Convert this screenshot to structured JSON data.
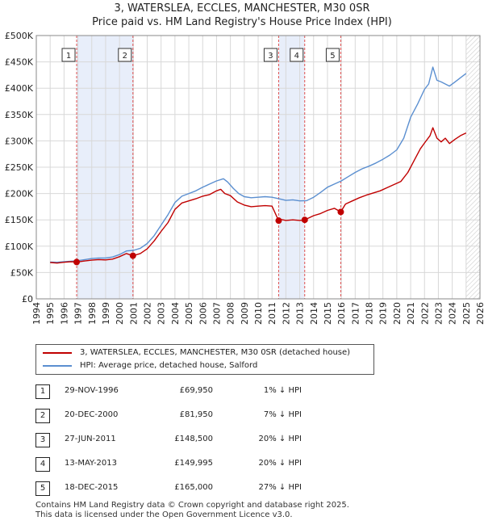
{
  "title_line1": "3, WATERSLEA, ECCLES, MANCHESTER, M30 0SR",
  "title_line2": "Price paid vs. HM Land Registry's House Price Index (HPI)",
  "colors": {
    "property": "#c00000",
    "hpi": "#5b8fd0",
    "shade": "#e8eefa",
    "sale_line": "#e05050"
  },
  "chart_data": {
    "type": "line",
    "xlim": [
      1994,
      2026
    ],
    "ylim": [
      0,
      500000
    ],
    "grid": true,
    "x_ticks": [
      "1994",
      "1995",
      "1996",
      "1997",
      "1998",
      "1999",
      "2000",
      "2001",
      "2002",
      "2003",
      "2004",
      "2005",
      "2006",
      "2007",
      "2008",
      "2009",
      "2010",
      "2011",
      "2012",
      "2013",
      "2014",
      "2015",
      "2016",
      "2017",
      "2018",
      "2019",
      "2020",
      "2021",
      "2022",
      "2023",
      "2024",
      "2025",
      "2026"
    ],
    "y_ticks": [
      {
        "value": 0,
        "label": "£0"
      },
      {
        "value": 50000,
        "label": "£50K"
      },
      {
        "value": 100000,
        "label": "£100K"
      },
      {
        "value": 150000,
        "label": "£150K"
      },
      {
        "value": 200000,
        "label": "£200K"
      },
      {
        "value": 250000,
        "label": "£250K"
      },
      {
        "value": 300000,
        "label": "£300K"
      },
      {
        "value": 350000,
        "label": "£350K"
      },
      {
        "value": 400000,
        "label": "£400K"
      },
      {
        "value": 450000,
        "label": "£450K"
      },
      {
        "value": 500000,
        "label": "£500K"
      }
    ],
    "series": [
      {
        "name": "3, WATERSLEA, ECCLES, MANCHESTER, M30 0SR (detached house)",
        "x": [
          1995.0,
          1995.5,
          1996.0,
          1996.5,
          1996.91,
          1997.5,
          1998.0,
          1998.5,
          1999.0,
          1999.5,
          2000.0,
          2000.5,
          2000.97,
          2001.5,
          2002.0,
          2002.5,
          2003.0,
          2003.5,
          2004.0,
          2004.5,
          2005.0,
          2005.5,
          2006.0,
          2006.5,
          2007.0,
          2007.3,
          2007.6,
          2008.0,
          2008.5,
          2009.0,
          2009.5,
          2010.0,
          2010.5,
          2011.0,
          2011.48,
          2011.6,
          2012.0,
          2012.5,
          2013.0,
          2013.36,
          2013.6,
          2014.0,
          2014.5,
          2015.0,
          2015.5,
          2015.96,
          2016.3,
          2016.8,
          2017.3,
          2017.8,
          2018.3,
          2018.8,
          2019.3,
          2019.8,
          2020.3,
          2020.8,
          2021.3,
          2021.7,
          2022.0,
          2022.4,
          2022.6,
          2022.9,
          2023.2,
          2023.5,
          2023.8,
          2024.2,
          2024.6,
          2025.0
        ],
        "values": [
          69000,
          68000,
          69500,
          70500,
          69950,
          72000,
          73500,
          74500,
          74000,
          75500,
          80000,
          86000,
          81950,
          86000,
          95000,
          110000,
          128000,
          145000,
          170000,
          182000,
          186000,
          190000,
          195000,
          198000,
          205000,
          208000,
          200000,
          196000,
          184000,
          178000,
          175000,
          176000,
          177000,
          176000,
          148500,
          151000,
          149000,
          150000,
          149000,
          149995,
          153000,
          158000,
          162000,
          168000,
          172000,
          165000,
          180000,
          186000,
          192000,
          197000,
          201000,
          205000,
          211000,
          217000,
          223000,
          240000,
          265000,
          285000,
          296000,
          310000,
          325000,
          305000,
          298000,
          305000,
          295000,
          303000,
          310000,
          315000
        ]
      },
      {
        "name": "HPI: Average price, detached house, Salford",
        "x": [
          1995.0,
          1995.5,
          1996.0,
          1996.5,
          1997.0,
          1997.5,
          1998.0,
          1998.5,
          1999.0,
          1999.5,
          2000.0,
          2000.5,
          2001.0,
          2001.5,
          2002.0,
          2002.5,
          2003.0,
          2003.5,
          2004.0,
          2004.5,
          2005.0,
          2005.5,
          2006.0,
          2006.5,
          2007.0,
          2007.5,
          2007.8,
          2008.2,
          2008.6,
          2009.0,
          2009.5,
          2010.0,
          2010.5,
          2011.0,
          2011.5,
          2012.0,
          2012.5,
          2013.0,
          2013.5,
          2014.0,
          2014.5,
          2015.0,
          2015.5,
          2016.0,
          2016.5,
          2017.0,
          2017.5,
          2018.0,
          2018.5,
          2019.0,
          2019.5,
          2020.0,
          2020.5,
          2021.0,
          2021.5,
          2022.0,
          2022.3,
          2022.6,
          2022.9,
          2023.2,
          2023.5,
          2023.8,
          2024.2,
          2024.6,
          2025.0
        ],
        "values": [
          70000,
          69500,
          70500,
          71500,
          72500,
          74500,
          76500,
          77500,
          77500,
          79500,
          84000,
          91000,
          92000,
          96000,
          105000,
          120000,
          140000,
          160000,
          183000,
          195000,
          200000,
          205000,
          212000,
          218000,
          224000,
          228000,
          222000,
          210000,
          200000,
          194000,
          192000,
          193000,
          194000,
          193000,
          190000,
          187000,
          188000,
          186000,
          186500,
          193000,
          202000,
          212000,
          218000,
          224000,
          232000,
          240000,
          247000,
          252000,
          258000,
          265000,
          273000,
          283000,
          305000,
          345000,
          370000,
          398000,
          408000,
          440000,
          415000,
          412000,
          408000,
          404000,
          412000,
          420000,
          428000
        ]
      }
    ],
    "sales": [
      {
        "num": "1",
        "date": "29-NOV-1996",
        "x": 1996.91,
        "price": 69950,
        "price_label": "£69,950",
        "hpi": "1% ↓ HPI"
      },
      {
        "num": "2",
        "date": "20-DEC-2000",
        "x": 2000.97,
        "price": 81950,
        "price_label": "£81,950",
        "hpi": "7% ↓ HPI"
      },
      {
        "num": "3",
        "date": "27-JUN-2011",
        "x": 2011.48,
        "price": 148500,
        "price_label": "£148,500",
        "hpi": "20% ↓ HPI"
      },
      {
        "num": "4",
        "date": "13-MAY-2013",
        "x": 2013.36,
        "price": 149995,
        "price_label": "£149,995",
        "hpi": "20% ↓ HPI"
      },
      {
        "num": "5",
        "date": "18-DEC-2015",
        "x": 2015.96,
        "price": 165000,
        "price_label": "£165,000",
        "hpi": "27% ↓ HPI"
      }
    ],
    "shaded_spans": [
      [
        1996.91,
        2000.97
      ],
      [
        2011.48,
        2013.36
      ]
    ],
    "future_hatch_from": 2025.0
  },
  "legend": {
    "property_label": "3, WATERSLEA, ECCLES, MANCHESTER, M30 0SR (detached house)",
    "hpi_label": "HPI: Average price, detached house, Salford"
  },
  "footer_line1": "Contains HM Land Registry data © Crown copyright and database right 2025.",
  "footer_line2": "This data is licensed under the Open Government Licence v3.0."
}
